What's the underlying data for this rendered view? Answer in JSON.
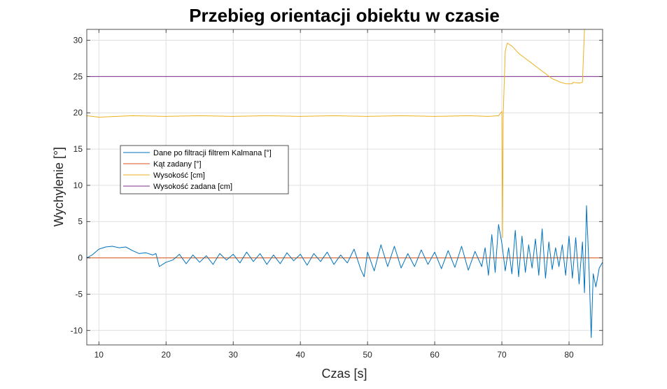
{
  "chart_data": {
    "type": "line",
    "title": "Przebieg orientacji obiektu w czasie",
    "xlabel": "Czas [s]",
    "ylabel": "Wychylenie [°]",
    "xlim": [
      8.2,
      85
    ],
    "ylim": [
      -12,
      31.5
    ],
    "xticks": [
      10,
      20,
      30,
      40,
      50,
      60,
      70,
      80
    ],
    "yticks": [
      -10,
      -5,
      0,
      5,
      10,
      15,
      20,
      25,
      30
    ],
    "grid": true,
    "legend_position": "left",
    "colors": {
      "kalman": "#0072BD",
      "kat": "#D95319",
      "wysokosc": "#EDB120",
      "wysokosc_zadana": "#7E2F8E"
    },
    "series": [
      {
        "name": "Dane po filtracji filtrem Kalmana [°]",
        "key": "kalman",
        "x": [
          8.2,
          9,
          10,
          11,
          12,
          13,
          14,
          15,
          16,
          17,
          18,
          18.5,
          19,
          20,
          21,
          22,
          23,
          24,
          25,
          26,
          27,
          28,
          29,
          30,
          31,
          32,
          33,
          34,
          35,
          36,
          37,
          38,
          39,
          40,
          41,
          42,
          43,
          44,
          45,
          46,
          47,
          48,
          49,
          49.5,
          50,
          51,
          52,
          53,
          54,
          55,
          56,
          57,
          58,
          59,
          60,
          61,
          62,
          63,
          64,
          65,
          66,
          67,
          67.5,
          68,
          68.5,
          69,
          69.5,
          70,
          70.5,
          71,
          71.5,
          72,
          72.5,
          73,
          73.5,
          74,
          74.5,
          75,
          75.5,
          76,
          76.5,
          77,
          77.5,
          78,
          78.5,
          79,
          79.5,
          80,
          80.5,
          81,
          81.5,
          82,
          82.3,
          82.6,
          83,
          83.3,
          83.6,
          84,
          84.5,
          85
        ],
        "y": [
          0,
          0.4,
          1.2,
          1.5,
          1.6,
          1.4,
          1.5,
          1.0,
          0.6,
          0.7,
          0.4,
          0.6,
          -1.2,
          -0.6,
          -0.3,
          0.5,
          -0.8,
          0.4,
          -0.6,
          0.3,
          -0.9,
          0.6,
          -0.3,
          0.5,
          -0.7,
          0.8,
          -0.5,
          0.6,
          -0.9,
          0.4,
          -0.8,
          0.7,
          -0.4,
          0.5,
          -1.0,
          0.6,
          -0.5,
          0.8,
          -0.9,
          0.4,
          -0.7,
          1.2,
          -1.6,
          -2.6,
          0.8,
          -1.8,
          1.8,
          -1.2,
          1.6,
          -1.4,
          0.6,
          -1.2,
          1.1,
          -0.9,
          0.8,
          -1.5,
          1.0,
          -1.3,
          1.6,
          -1.7,
          0.9,
          -1.2,
          1.4,
          -2.4,
          3.2,
          -2.0,
          4.6,
          2.0,
          -1.8,
          1.4,
          -2.2,
          3.8,
          -2.6,
          3.0,
          -2.0,
          1.8,
          -1.4,
          2.6,
          -2.4,
          4.0,
          -2.8,
          2.2,
          -1.6,
          1.4,
          -1.2,
          1.8,
          -2.4,
          3.0,
          -2.8,
          2.8,
          -3.6,
          2.2,
          -4.8,
          7.2,
          -2.0,
          -11.0,
          -2.2,
          -4.0,
          -1.4,
          -0.6
        ]
      },
      {
        "name": "Kąt zadany [°]",
        "key": "kat",
        "x": [
          8.2,
          85
        ],
        "y": [
          0,
          0
        ]
      },
      {
        "name": "Wysokość  [cm]",
        "key": "wysokosc",
        "x": [
          8.2,
          10,
          15,
          20,
          25,
          30,
          35,
          40,
          45,
          50,
          55,
          60,
          65,
          68,
          69.5,
          70,
          70.1,
          70.2,
          70.5,
          70.8,
          71.5,
          72.5,
          73.5,
          74.5,
          75.5,
          76.5,
          77.5,
          78.5,
          79.5,
          80.5,
          80.6,
          81.5,
          82,
          82.3
        ],
        "y": [
          19.6,
          19.4,
          19.6,
          19.5,
          19.6,
          19.5,
          19.6,
          19.5,
          19.6,
          19.5,
          19.6,
          19.5,
          19.6,
          19.5,
          19.6,
          20.2,
          2.8,
          19.8,
          28.5,
          29.6,
          29.2,
          28.2,
          27.5,
          26.8,
          26.1,
          25.4,
          24.7,
          24.3,
          24.0,
          24.0,
          24.2,
          24.1,
          24.2,
          31.5
        ]
      },
      {
        "name": "Wysokość zadana [cm]",
        "key": "wysokosc_zadana",
        "x": [
          8.2,
          85
        ],
        "y": [
          25,
          25
        ]
      }
    ]
  }
}
